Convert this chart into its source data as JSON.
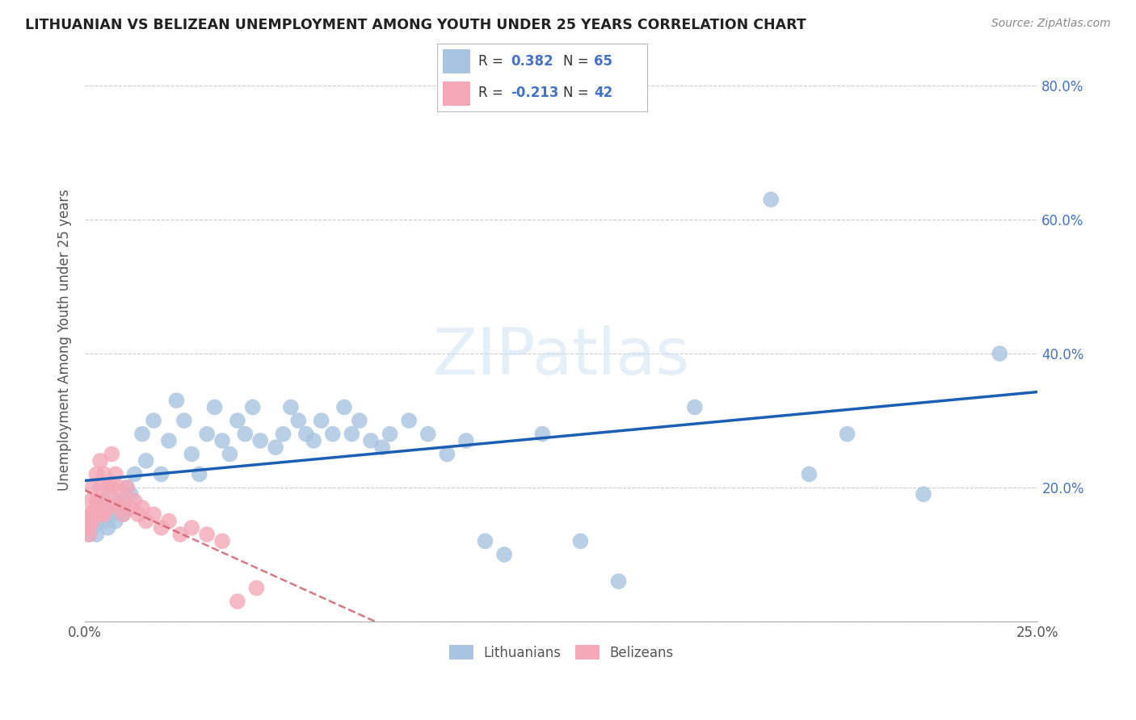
{
  "title": "LITHUANIAN VS BELIZEAN UNEMPLOYMENT AMONG YOUTH UNDER 25 YEARS CORRELATION CHART",
  "source": "Source: ZipAtlas.com",
  "ylabel": "Unemployment Among Youth under 25 years",
  "xlim": [
    0.0,
    0.25
  ],
  "ylim": [
    0.0,
    0.84
  ],
  "xtick_vals": [
    0.0,
    0.05,
    0.1,
    0.15,
    0.2,
    0.25
  ],
  "xticklabels": [
    "0.0%",
    "",
    "",
    "",
    "",
    "25.0%"
  ],
  "ytick_vals": [
    0.0,
    0.2,
    0.4,
    0.6,
    0.8
  ],
  "yticklabels_right": [
    "",
    "20.0%",
    "40.0%",
    "60.0%",
    "80.0%"
  ],
  "R_blue": 0.382,
  "N_blue": 65,
  "R_pink": -0.213,
  "N_pink": 42,
  "blue_color": "#a8c4e0",
  "pink_color": "#f4a8b8",
  "line_blue": "#1a5fb4",
  "line_pink": "#d06070",
  "blue_x": [
    0.001,
    0.001,
    0.002,
    0.002,
    0.003,
    0.003,
    0.004,
    0.005,
    0.005,
    0.006,
    0.006,
    0.007,
    0.008,
    0.009,
    0.01,
    0.01,
    0.011,
    0.012,
    0.013,
    0.015,
    0.016,
    0.018,
    0.02,
    0.022,
    0.024,
    0.026,
    0.028,
    0.03,
    0.032,
    0.034,
    0.036,
    0.038,
    0.04,
    0.042,
    0.044,
    0.046,
    0.05,
    0.052,
    0.054,
    0.056,
    0.058,
    0.06,
    0.062,
    0.065,
    0.068,
    0.07,
    0.072,
    0.075,
    0.078,
    0.08,
    0.085,
    0.09,
    0.095,
    0.1,
    0.105,
    0.11,
    0.12,
    0.13,
    0.14,
    0.16,
    0.18,
    0.19,
    0.2,
    0.22,
    0.24
  ],
  "blue_y": [
    0.15,
    0.13,
    0.16,
    0.14,
    0.17,
    0.13,
    0.16,
    0.15,
    0.18,
    0.14,
    0.17,
    0.16,
    0.15,
    0.18,
    0.17,
    0.16,
    0.2,
    0.19,
    0.22,
    0.28,
    0.24,
    0.3,
    0.22,
    0.27,
    0.33,
    0.3,
    0.25,
    0.22,
    0.28,
    0.32,
    0.27,
    0.25,
    0.3,
    0.28,
    0.32,
    0.27,
    0.26,
    0.28,
    0.32,
    0.3,
    0.28,
    0.27,
    0.3,
    0.28,
    0.32,
    0.28,
    0.3,
    0.27,
    0.26,
    0.28,
    0.3,
    0.28,
    0.25,
    0.27,
    0.12,
    0.1,
    0.28,
    0.12,
    0.06,
    0.32,
    0.63,
    0.22,
    0.28,
    0.19,
    0.4
  ],
  "pink_x": [
    0.0005,
    0.001,
    0.001,
    0.001,
    0.0015,
    0.002,
    0.002,
    0.002,
    0.003,
    0.003,
    0.003,
    0.004,
    0.004,
    0.004,
    0.005,
    0.005,
    0.005,
    0.006,
    0.006,
    0.007,
    0.007,
    0.008,
    0.008,
    0.009,
    0.009,
    0.01,
    0.01,
    0.011,
    0.012,
    0.013,
    0.014,
    0.015,
    0.016,
    0.018,
    0.02,
    0.022,
    0.025,
    0.028,
    0.032,
    0.036,
    0.04,
    0.045
  ],
  "pink_y": [
    0.15,
    0.13,
    0.16,
    0.14,
    0.18,
    0.16,
    0.2,
    0.15,
    0.22,
    0.18,
    0.17,
    0.24,
    0.2,
    0.16,
    0.22,
    0.18,
    0.16,
    0.2,
    0.17,
    0.25,
    0.2,
    0.22,
    0.18,
    0.2,
    0.17,
    0.16,
    0.18,
    0.2,
    0.17,
    0.18,
    0.16,
    0.17,
    0.15,
    0.16,
    0.14,
    0.15,
    0.13,
    0.14,
    0.13,
    0.12,
    0.03,
    0.05
  ]
}
